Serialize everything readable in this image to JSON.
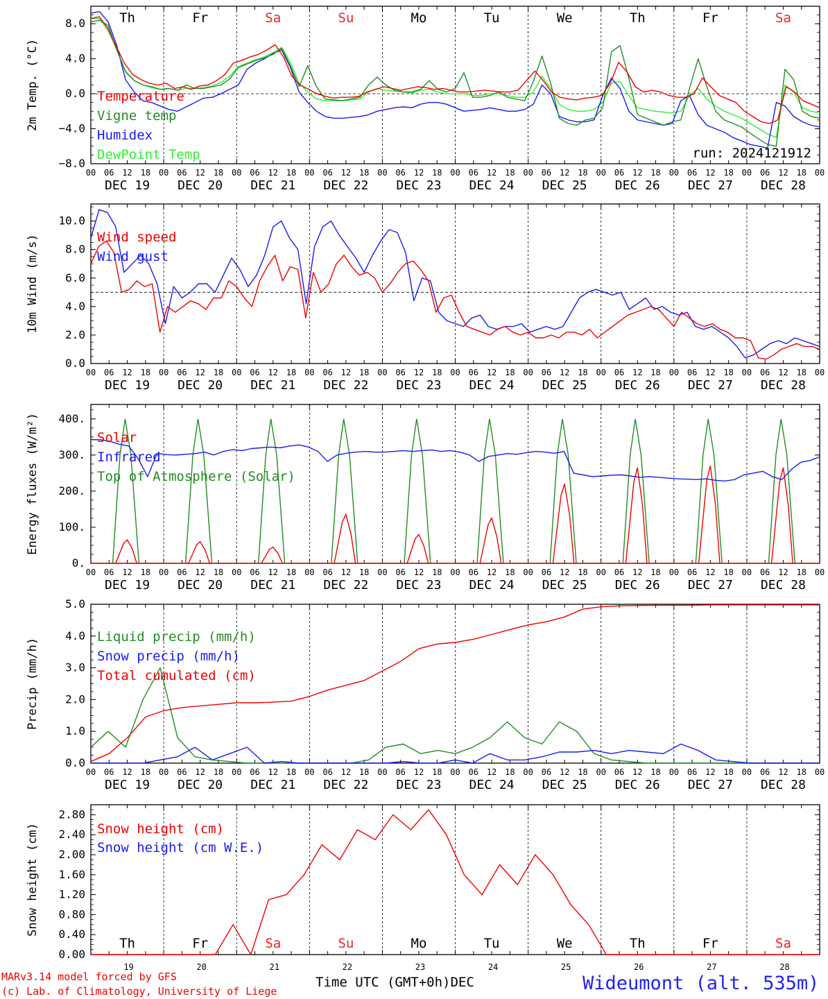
{
  "footer": {
    "model": "MARv3.14 model forced by GFS",
    "credit": "(c) Lab. of Climatology, University of Liege",
    "axis_title": "Time UTC (GMT+0h)",
    "station": "Wideumont (alt. 535m)",
    "month_word": "DEC"
  },
  "colors": {
    "red": "#ee0000",
    "green": "#228b22",
    "blue": "#1a1aee",
    "lightgreen": "#33ee33",
    "weekend": "#ee2222"
  },
  "chart_data": [
    {
      "type": "line",
      "ylabel": "2m Temp. (°C)",
      "ylim": [
        -8,
        10
      ],
      "yticks": [
        "8.0",
        "4.0",
        "0.0",
        "−4.0",
        "−8.0"
      ],
      "ytick_values": [
        8,
        4,
        0,
        -4,
        -8
      ],
      "ref_line": 0,
      "annotation": "run: 2024121912",
      "day_labels": [
        "Th",
        "Fr",
        "Sa",
        "Su",
        "Mo",
        "Tu",
        "We",
        "Th",
        "Fr",
        "Sa"
      ],
      "date_labels": [
        "DEC 19",
        "DEC 20",
        "DEC 21",
        "DEC 22",
        "DEC 23",
        "DEC 24",
        "DEC 25",
        "DEC 26",
        "DEC 27",
        "DEC 28"
      ],
      "hour_labels": [
        "00",
        "06",
        "12",
        "18"
      ],
      "series": [
        {
          "name": "Temperature",
          "color": "red",
          "values": [
            8.6,
            8.8,
            7.5,
            5.5,
            3.5,
            2.2,
            1.6,
            1.2,
            1.0,
            1.2,
            0.6,
            0.8,
            0.5,
            0.9,
            1.0,
            1.5,
            2.2,
            3.5,
            3.8,
            4.2,
            4.5,
            5.0,
            5.6,
            4.2,
            2.0,
            1.0,
            0.5,
            0.0,
            -0.3,
            -0.5,
            -0.4,
            -0.4,
            -0.3,
            0.2,
            0.5,
            0.8,
            0.6,
            0.4,
            0.6,
            0.8,
            0.7,
            0.5,
            0.6,
            0.4,
            0.2,
            0.2,
            0.3,
            0.4,
            0.3,
            0.2,
            0.2,
            0.4,
            1.5,
            2.6,
            1.5,
            0.2,
            -0.4,
            -0.6,
            -0.7,
            -0.5,
            -0.4,
            -0.2,
            1.2,
            3.6,
            2.5,
            0.8,
            0.2,
            0.4,
            0.2,
            -0.2,
            -0.4,
            -0.4,
            0.0,
            1.8,
            0.8,
            -0.2,
            -0.6,
            -1.0,
            -2.0,
            -2.6,
            -3.2,
            -3.4,
            -3.0,
            0.8,
            0.2,
            -0.8,
            -1.2,
            -1.6
          ]
        },
        {
          "name": "Vigne temp",
          "color": "green",
          "values": [
            8.2,
            8.4,
            7.8,
            5.0,
            2.5,
            1.5,
            1.0,
            0.8,
            0.5,
            0.6,
            0.4,
            1.0,
            0.6,
            0.6,
            0.8,
            1.0,
            1.7,
            3.0,
            3.4,
            3.8,
            4.1,
            4.5,
            5.2,
            3.2,
            0.8,
            3.2,
            0.8,
            -0.6,
            -0.7,
            -0.8,
            -0.6,
            -0.4,
            1.0,
            1.9,
            1.0,
            0.4,
            0.2,
            0.2,
            0.5,
            1.5,
            0.5,
            0.2,
            0.6,
            2.4,
            -0.4,
            -0.4,
            -0.2,
            0.2,
            -0.4,
            -0.6,
            -0.8,
            1.4,
            4.3,
            1.2,
            -2.8,
            -3.4,
            -3.6,
            -3.0,
            -2.8,
            -1.6,
            4.8,
            5.5,
            1.8,
            -2.4,
            -2.8,
            -3.2,
            -3.6,
            -3.2,
            -3.0,
            0.6,
            4.0,
            0.8,
            -2.0,
            -3.0,
            -3.4,
            -3.8,
            -4.5,
            -5.2,
            -5.8,
            -6.0,
            2.8,
            1.6,
            -2.0,
            -2.6,
            -2.8
          ]
        },
        {
          "name": "Humidex",
          "color": "blue",
          "values": [
            9.2,
            9.4,
            8.2,
            5.5,
            1.6,
            0.2,
            -0.8,
            -1.0,
            -1.4,
            -1.8,
            -2.0,
            -1.5,
            -1.0,
            -0.5,
            -0.4,
            0.0,
            0.5,
            1.0,
            2.8,
            3.5,
            4.0,
            4.6,
            5.0,
            3.0,
            0.2,
            -1.0,
            -2.0,
            -2.6,
            -2.8,
            -2.8,
            -2.7,
            -2.6,
            -2.4,
            -2.0,
            -1.8,
            -1.6,
            -1.5,
            -1.6,
            -1.2,
            -1.0,
            -1.0,
            -1.2,
            -1.6,
            -2.0,
            -1.9,
            -1.8,
            -1.6,
            -1.8,
            -2.0,
            -2.0,
            -1.8,
            -1.2,
            1.0,
            0.0,
            -2.6,
            -3.0,
            -3.2,
            -3.2,
            -3.0,
            -0.2,
            1.8,
            0.6,
            -2.0,
            -3.0,
            -3.2,
            -3.4,
            -3.6,
            -3.4,
            -0.8,
            -0.2,
            -2.4,
            -3.6,
            -4.0,
            -4.4,
            -5.0,
            -5.4,
            -5.8,
            -6.0,
            -6.2,
            -1.0,
            -1.4,
            -2.6,
            -3.2,
            -3.6,
            -3.8
          ]
        },
        {
          "name": "DewPoint Temp",
          "color": "lightgreen",
          "values": [
            8.6,
            8.6,
            7.2,
            5.0,
            2.6,
            1.5,
            1.0,
            0.7,
            0.5,
            0.6,
            0.4,
            0.6,
            0.6,
            0.7,
            0.9,
            1.3,
            2.0,
            3.1,
            3.5,
            3.9,
            4.2,
            4.7,
            5.3,
            3.6,
            1.2,
            0.2,
            -0.6,
            -0.8,
            -0.8,
            -0.8,
            -0.7,
            -0.6,
            0.2,
            0.6,
            0.4,
            0.3,
            0.2,
            0.1,
            0.4,
            0.5,
            0.2,
            0.0,
            0.0,
            0.0,
            -0.2,
            -0.2,
            0.0,
            0.0,
            -0.2,
            -0.4,
            -0.4,
            0.2,
            2.0,
            0.6,
            -1.2,
            -1.8,
            -2.0,
            -2.0,
            -1.8,
            -1.0,
            1.2,
            1.4,
            -0.2,
            -1.6,
            -1.8,
            -2.0,
            -2.1,
            -2.2,
            -2.0,
            -0.2,
            0.6,
            -0.6,
            -1.4,
            -2.0,
            -2.4,
            -2.8,
            -3.4,
            -4.0,
            -4.6,
            -5.0,
            1.0,
            0.2,
            -1.6,
            -2.0,
            -2.2
          ]
        }
      ]
    },
    {
      "type": "line",
      "ylabel": "10m Wind (m/s)",
      "ylim": [
        0,
        11.2
      ],
      "yticks": [
        "10.0",
        "8.0",
        "6.0",
        "4.0",
        "2.0",
        "0.0"
      ],
      "ytick_values": [
        10,
        8,
        6,
        4,
        2,
        0
      ],
      "ref_line": 5,
      "date_labels": [
        "DEC 19",
        "DEC 20",
        "DEC 21",
        "DEC 22",
        "DEC 23",
        "DEC 24",
        "DEC 25",
        "DEC 26",
        "DEC 27",
        "DEC 28"
      ],
      "hour_labels": [
        "00",
        "06",
        "12",
        "18"
      ],
      "series": [
        {
          "name": "Wind speed",
          "color": "red",
          "values": [
            7.0,
            8.2,
            8.6,
            7.8,
            5.0,
            5.2,
            5.8,
            5.4,
            5.6,
            2.2,
            4.0,
            3.6,
            4.0,
            4.4,
            4.2,
            3.8,
            4.6,
            4.6,
            5.8,
            5.4,
            4.6,
            4.0,
            5.8,
            6.8,
            7.6,
            5.8,
            6.8,
            6.6,
            3.2,
            6.4,
            5.0,
            5.6,
            7.0,
            7.6,
            6.8,
            6.2,
            6.4,
            6.0,
            5.0,
            5.6,
            6.4,
            7.0,
            7.2,
            6.6,
            5.8,
            3.6,
            4.6,
            4.8,
            3.6,
            2.6,
            2.4,
            2.2,
            2.0,
            2.4,
            2.6,
            2.2,
            2.0,
            2.2,
            1.8,
            1.8,
            2.0,
            1.8,
            2.2,
            2.2,
            2.0,
            2.4,
            1.8,
            2.2,
            2.6,
            3.0,
            3.4,
            3.6,
            3.8,
            4.0,
            3.8,
            3.2,
            2.6,
            3.6,
            3.2,
            2.8,
            2.6,
            2.8,
            2.4,
            2.2,
            1.8,
            1.8,
            1.6,
            0.4,
            0.3,
            0.6,
            1.0,
            1.2,
            1.4,
            1.2,
            1.2,
            1.0
          ]
        },
        {
          "name": "Wind gust",
          "color": "blue",
          "values": [
            8.8,
            10.8,
            10.6,
            9.6,
            6.4,
            7.0,
            7.6,
            7.0,
            5.6,
            2.8,
            5.4,
            4.6,
            5.0,
            5.6,
            5.6,
            5.0,
            6.2,
            7.4,
            6.6,
            5.4,
            6.2,
            7.6,
            9.6,
            10.0,
            8.8,
            8.0,
            4.2,
            8.2,
            9.6,
            10.0,
            9.0,
            8.2,
            7.4,
            6.4,
            7.6,
            8.6,
            9.4,
            9.2,
            7.8,
            4.4,
            6.0,
            5.8,
            3.6,
            3.0,
            2.8,
            2.6,
            3.2,
            3.4,
            2.6,
            2.4,
            2.6,
            2.6,
            2.8,
            2.2,
            2.4,
            2.6,
            2.4,
            2.6,
            3.6,
            4.6,
            5.0,
            5.2,
            5.0,
            4.8,
            5.0,
            3.8,
            4.2,
            4.6,
            3.8,
            4.0,
            3.6,
            3.4,
            3.6,
            2.6,
            2.4,
            2.6,
            2.2,
            1.8,
            1.2,
            0.4,
            0.6,
            1.0,
            1.4,
            1.6,
            1.4,
            1.8,
            1.6,
            1.4,
            1.2
          ]
        }
      ]
    },
    {
      "type": "line",
      "ylabel": "Energy fluxes (W/m²)",
      "ylim": [
        0,
        440
      ],
      "yticks": [
        "400.",
        "300.",
        "200.",
        "100.",
        "0."
      ],
      "ytick_values": [
        400,
        300,
        200,
        100,
        0
      ],
      "date_labels": [
        "DEC 19",
        "DEC 20",
        "DEC 21",
        "DEC 22",
        "DEC 23",
        "DEC 24",
        "DEC 25",
        "DEC 26",
        "DEC 27",
        "DEC 28"
      ],
      "hour_labels": [
        "00",
        "06",
        "12",
        "18"
      ],
      "solar_peaks": [
        65,
        60,
        45,
        135,
        80,
        125,
        220,
        265,
        270,
        265
      ],
      "toa_peak": 400,
      "series": [
        {
          "name": "Solar",
          "color": "red"
        },
        {
          "name": "Infrared",
          "color": "blue",
          "values": [
            343,
            342,
            338,
            330,
            325,
            290,
            240,
            305,
            301,
            300,
            302,
            304,
            308,
            300,
            310,
            315,
            312,
            318,
            320,
            322,
            320,
            325,
            328,
            322,
            310,
            282,
            300,
            305,
            308,
            310,
            308,
            308,
            310,
            312,
            310,
            312,
            314,
            310,
            312,
            308,
            300,
            282,
            296,
            300,
            304,
            302,
            306,
            310,
            308,
            305,
            310,
            250,
            245,
            240,
            242,
            244,
            245,
            242,
            238,
            240,
            238,
            236,
            234,
            233,
            232,
            234,
            230,
            228,
            232,
            245,
            250,
            255,
            240,
            232,
            260,
            280,
            285,
            295
          ]
        },
        {
          "name": "Top of Atmosphere (Solar)",
          "color": "green"
        }
      ]
    },
    {
      "type": "line",
      "ylabel": "Precip (mm/h)",
      "ylim": [
        0,
        5.0
      ],
      "yticks": [
        "5.0",
        "4.0",
        "3.0",
        "2.0",
        "1.0",
        "0.0"
      ],
      "ytick_values": [
        5,
        4,
        3,
        2,
        1,
        0
      ],
      "date_labels": [
        "DEC 19",
        "DEC 20",
        "DEC 21",
        "DEC 22",
        "DEC 23",
        "DEC 24",
        "DEC 25",
        "DEC 26",
        "DEC 27",
        "DEC 28"
      ],
      "hour_labels": [
        "00",
        "06",
        "12",
        "18"
      ],
      "series": [
        {
          "name": "Liquid precip (mm/h)",
          "color": "green",
          "values": [
            0.5,
            1.0,
            0.5,
            2.0,
            3.0,
            0.8,
            0.2,
            0.1,
            0.05,
            0.0,
            0.0,
            0.0,
            0.0,
            0.0,
            0.0,
            0.0,
            0.1,
            0.5,
            0.6,
            0.3,
            0.4,
            0.3,
            0.5,
            0.8,
            1.3,
            0.8,
            0.6,
            1.3,
            1.0,
            0.3,
            0.1,
            0.05,
            0.0,
            0.0,
            0.0,
            0.0,
            0.0,
            0.0,
            0.0,
            0.0,
            0.0,
            0.0,
            0.0
          ]
        },
        {
          "name": "Snow precip (mm/h)",
          "color": "blue",
          "values": [
            0.0,
            0.0,
            0.0,
            0.0,
            0.1,
            0.2,
            0.5,
            0.1,
            0.3,
            0.5,
            0.0,
            0.05,
            0.0,
            0.0,
            0.0,
            0.0,
            0.0,
            0.0,
            0.05,
            0.0,
            0.0,
            0.1,
            0.0,
            0.3,
            0.1,
            0.1,
            0.2,
            0.35,
            0.35,
            0.4,
            0.3,
            0.4,
            0.35,
            0.3,
            0.6,
            0.4,
            0.1,
            0.05,
            0.0,
            0.0,
            0.0,
            0.0,
            0.0
          ]
        },
        {
          "name": "Total cumulated (cm)",
          "color": "red",
          "values": [
            0.05,
            0.3,
            0.8,
            1.45,
            1.65,
            1.75,
            1.8,
            1.85,
            1.9,
            1.9,
            1.92,
            1.95,
            2.1,
            2.3,
            2.45,
            2.6,
            2.9,
            3.2,
            3.6,
            3.75,
            3.8,
            3.9,
            4.05,
            4.2,
            4.35,
            4.45,
            4.6,
            4.85,
            4.92,
            4.95,
            4.96,
            4.97,
            4.97,
            4.97,
            4.98,
            4.98,
            4.98,
            4.98,
            4.98,
            4.98,
            4.98
          ]
        }
      ]
    },
    {
      "type": "line",
      "ylabel": "Snow height (cm)",
      "ylim": [
        0,
        3.0
      ],
      "yticks": [
        "2.80",
        "2.40",
        "2.00",
        "1.60",
        "1.20",
        "0.80",
        "0.40",
        "0.00"
      ],
      "ytick_values": [
        2.8,
        2.4,
        2.0,
        1.6,
        1.2,
        0.8,
        0.4,
        0.0
      ],
      "day_labels": [
        "Th",
        "Fr",
        "Sa",
        "Su",
        "Mo",
        "Tu",
        "We",
        "Th",
        "Fr",
        "Sa"
      ],
      "day_numbers": [
        "19",
        "20",
        "21",
        "22",
        "23",
        "24",
        "25",
        "26",
        "27",
        "28"
      ],
      "series": [
        {
          "name": "Snow height (cm)",
          "color": "red",
          "values": [
            0,
            0,
            0,
            0,
            0,
            0,
            0,
            0,
            0.6,
            0,
            1.1,
            1.2,
            1.6,
            2.2,
            1.9,
            2.5,
            2.3,
            2.8,
            2.5,
            2.9,
            2.4,
            1.6,
            1.2,
            1.8,
            1.4,
            2.0,
            1.6,
            1.0,
            0.6,
            0,
            0,
            0,
            0,
            0,
            0,
            0,
            0,
            0,
            0,
            0,
            0,
            0
          ]
        },
        {
          "name": "Snow height (cm W.E.)",
          "color": "blue",
          "values": []
        }
      ]
    }
  ]
}
